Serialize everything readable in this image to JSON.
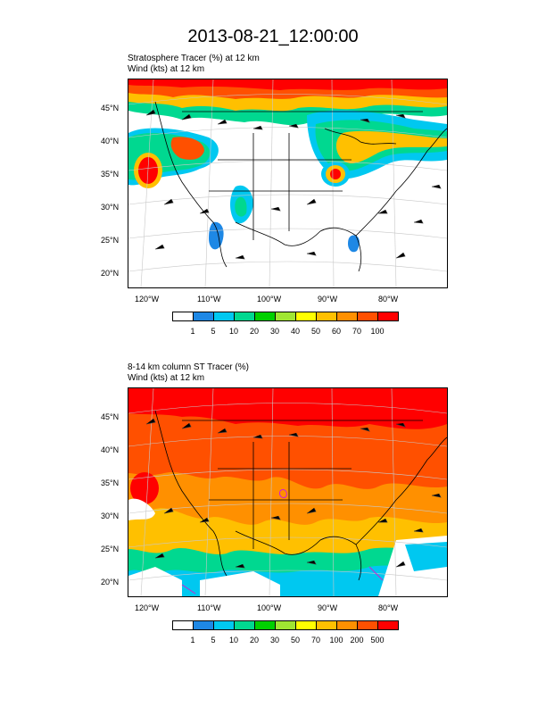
{
  "title": "2013-08-21_12:00:00",
  "panels": [
    {
      "subtitle_1": "Stratosphere Tracer   (%)    at   12 km",
      "subtitle_2": "Wind   (kts)    at  12 km",
      "lat_labels": [
        "45°N",
        "40°N",
        "35°N",
        "30°N",
        "25°N",
        "20°N"
      ],
      "lon_labels": [
        "120°W",
        "110°W",
        "100°W",
        "90°W",
        "80°W"
      ],
      "colorbar": {
        "colors": [
          "#ffffff",
          "#1e88e5",
          "#00c8f0",
          "#00d890",
          "#00d000",
          "#a0e632",
          "#ffff00",
          "#ffc000",
          "#ff9000",
          "#ff5000",
          "#ff0000"
        ],
        "labels": [
          "1",
          "5",
          "10",
          "20",
          "30",
          "40",
          "50",
          "60",
          "70",
          "100"
        ]
      }
    },
    {
      "subtitle_1": "8-14 km column ST Tracer   (%)",
      "subtitle_2": "Wind   (kts)    at  12 km",
      "lat_labels": [
        "45°N",
        "40°N",
        "35°N",
        "30°N",
        "25°N",
        "20°N"
      ],
      "lon_labels": [
        "120°W",
        "110°W",
        "100°W",
        "90°W",
        "80°W"
      ],
      "colorbar": {
        "colors": [
          "#ffffff",
          "#1e88e5",
          "#00c8f0",
          "#00d890",
          "#00d000",
          "#a0e632",
          "#ffff00",
          "#ffc000",
          "#ff9000",
          "#ff5000",
          "#ff0000"
        ],
        "labels": [
          "1",
          "5",
          "10",
          "20",
          "30",
          "50",
          "70",
          "100",
          "200",
          "500"
        ]
      }
    }
  ]
}
